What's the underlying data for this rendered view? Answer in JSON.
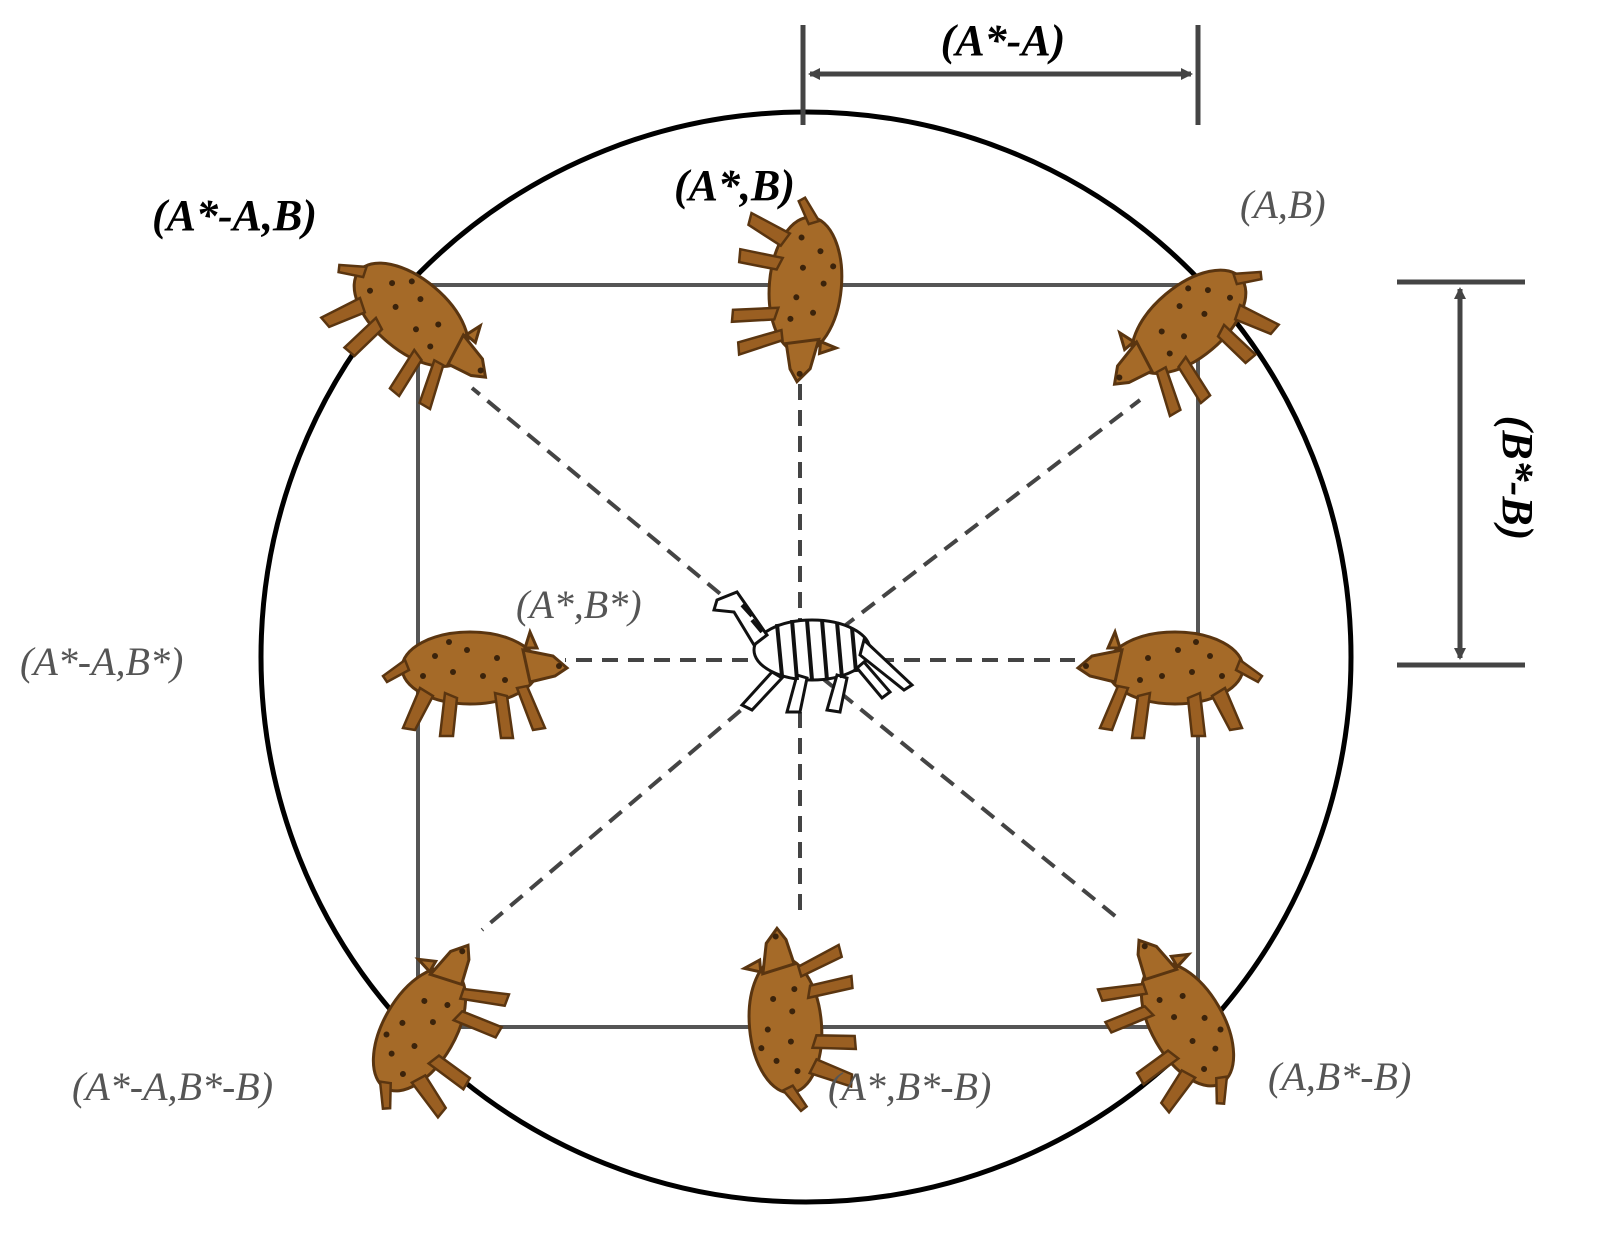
{
  "figure": {
    "prey_label": "(A*,B*)",
    "dimension_labels": {
      "horizontal": "(A*-A)",
      "vertical": "(B*-B)"
    },
    "positions": {
      "top_left": "(A*-A,B)",
      "top_center": "(A*,B)",
      "top_right": "(A,B)",
      "middle_left": "(A*-A,B*)",
      "bottom_left": "(A*-A,B*-B)",
      "bottom_center": "(A*,B*-B)",
      "bottom_right": "(A,B*-B)"
    },
    "colors": {
      "hyena": "#a56a28",
      "hyena_spots": "#3b230b",
      "lines": "#444444",
      "bold_label": "#000000",
      "gray_label": "#555555"
    },
    "icons": {
      "predator": "hyena-icon",
      "prey": "zebra-icon"
    }
  }
}
